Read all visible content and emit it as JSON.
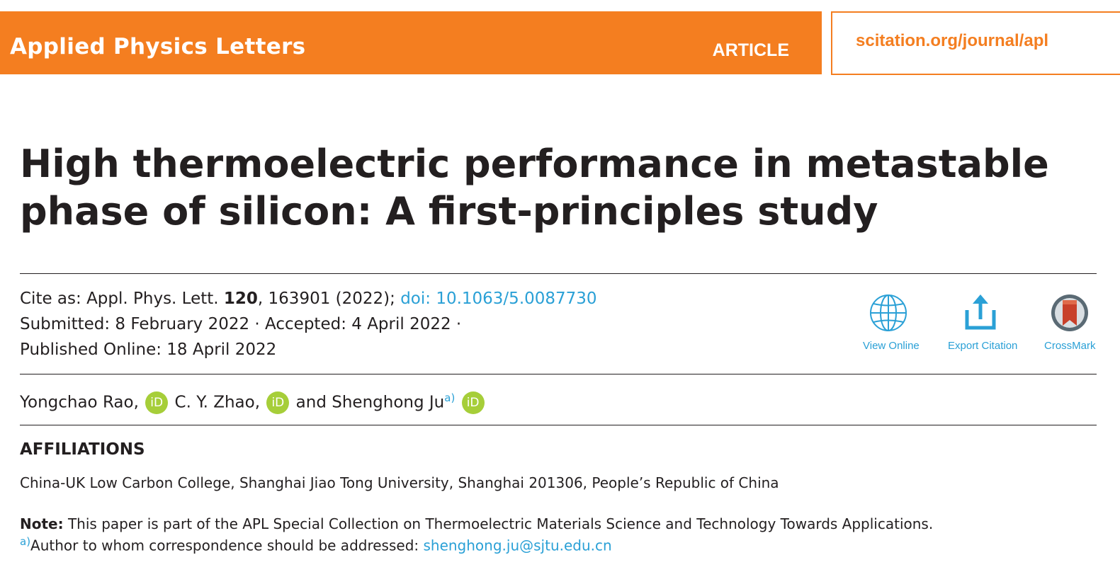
{
  "header": {
    "journal": "Applied Physics Letters",
    "section": "ARTICLE",
    "url": "scitation.org/journal/apl",
    "accent_color": "#f47e20"
  },
  "title": "High thermoelectric performance in metastable phase of silicon: A first-principles study",
  "citation": {
    "cite_prefix": "Cite as: Appl. Phys. Lett. ",
    "volume": "120",
    "pages_year": ", 163901 (2022); ",
    "doi": "doi: 10.1063/5.0087730",
    "submitted": "Submitted: 8 February 2022 · Accepted: 4 April 2022 ·",
    "published": "Published Online: 18 April 2022"
  },
  "tools": {
    "view_online": "View Online",
    "export_citation": "Export Citation",
    "crossmark": "CrossMark",
    "link_color": "#2aa0d6"
  },
  "authors": [
    {
      "name": "Yongchao Rao,",
      "sup": ""
    },
    {
      "name": "C. Y. Zhao,",
      "sup": ""
    },
    {
      "name": "and Shenghong Ju",
      "sup": "a)"
    }
  ],
  "orcid_icon": "iD",
  "affiliations": {
    "heading": "AFFILIATIONS",
    "text": "China-UK Low Carbon College, Shanghai Jiao Tong University, Shanghai 201306, People’s Republic of China"
  },
  "note": {
    "label": "Note:",
    "text": " This paper is part of the APL Special Collection on Thermoelectric Materials Science and Technology Towards Applications."
  },
  "correspondence": {
    "mark": "a)",
    "label": "Author to whom correspondence should be addressed: ",
    "email": "shenghong.ju@sjtu.edu.cn"
  }
}
